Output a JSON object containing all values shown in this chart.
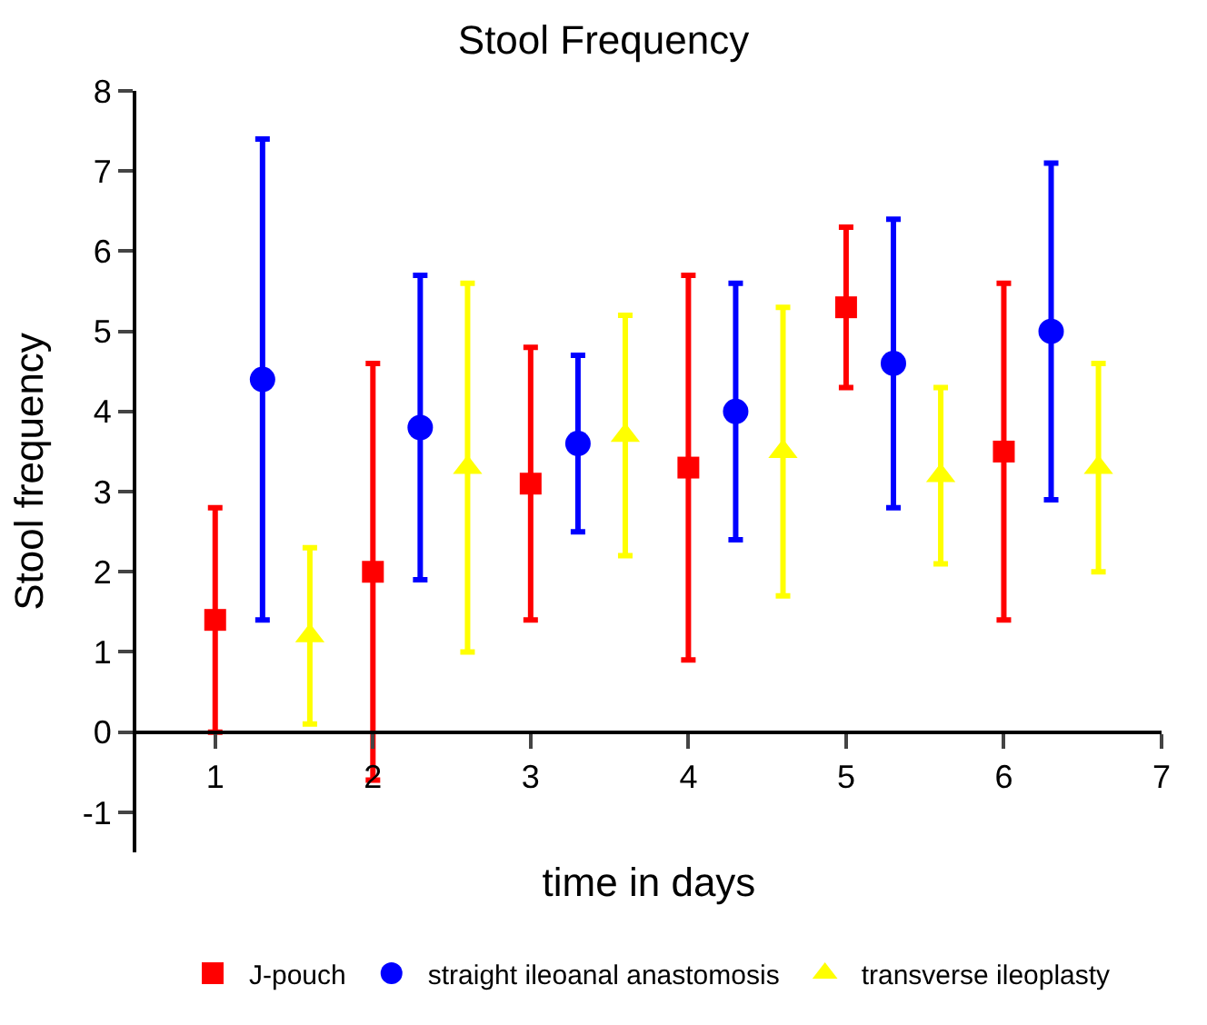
{
  "chart_data": {
    "type": "scatter",
    "title": "Stool Frequency",
    "xlabel": "time in days",
    "ylabel": "Stool frequency",
    "xlim": [
      0.5,
      7
    ],
    "xticks": [
      1,
      2,
      3,
      4,
      5,
      6,
      7
    ],
    "ylim": [
      -1.5,
      8
    ],
    "yticks": [
      -1,
      0,
      1,
      2,
      3,
      4,
      5,
      6,
      7,
      8
    ],
    "legend": "bottom",
    "series": [
      {
        "name": "J-pouch",
        "color": "#ff0000",
        "marker": "square",
        "x": [
          1,
          2,
          3,
          4,
          5,
          6
        ],
        "values": [
          1.4,
          2.0,
          3.1,
          3.3,
          5.3,
          3.5
        ],
        "errors": [
          [
            0,
            2.8
          ],
          [
            -0.6,
            4.6
          ],
          [
            1.4,
            4.8
          ],
          [
            0.9,
            5.7
          ],
          [
            4.3,
            6.3
          ],
          [
            1.4,
            5.6
          ]
        ]
      },
      {
        "name": "straight ileoanal anastomosis",
        "color": "#0000ff",
        "marker": "circle",
        "x": [
          1.3,
          2.3,
          3.3,
          4.3,
          5.3,
          6.3
        ],
        "values": [
          4.4,
          3.8,
          3.6,
          4.0,
          4.6,
          5.0
        ],
        "errors": [
          [
            1.4,
            7.4
          ],
          [
            1.9,
            5.7
          ],
          [
            2.5,
            4.7
          ],
          [
            2.4,
            5.6
          ],
          [
            2.8,
            6.4
          ],
          [
            2.9,
            7.1
          ]
        ]
      },
      {
        "name": "transverse ileoplasty",
        "color": "#ffff00",
        "marker": "triangle",
        "x": [
          1.6,
          2.6,
          3.6,
          4.6,
          5.6,
          6.6
        ],
        "values": [
          1.2,
          3.3,
          3.7,
          3.5,
          3.2,
          3.3
        ],
        "errors": [
          [
            0.1,
            2.3
          ],
          [
            1.0,
            5.6
          ],
          [
            2.2,
            5.2
          ],
          [
            1.7,
            5.3
          ],
          [
            2.1,
            4.3
          ],
          [
            2.0,
            4.6
          ]
        ]
      }
    ]
  }
}
